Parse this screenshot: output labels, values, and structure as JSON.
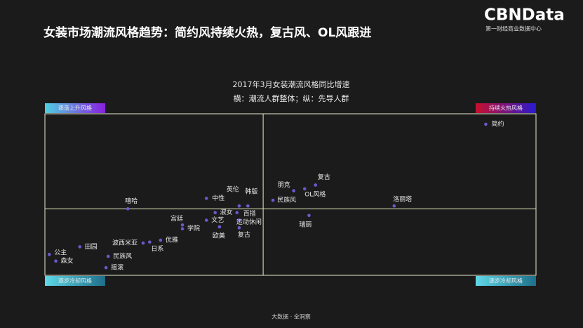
{
  "header": {
    "title": "女装市场潮流风格趋势：简约风持续火热，复古风、OL风跟进"
  },
  "logo": {
    "name": "CBNData",
    "tagline": "第一财经商业数据中心"
  },
  "footer": "大数据 · 全洞察",
  "chart_data": {
    "type": "scatter",
    "title": "2017年3月女装潮流风格同比增速",
    "subtitle": "横：潮流人群整体；纵：先导人群",
    "color": "#6a5acd",
    "quadrant_labels": {
      "top_left": "逐渐上升风格",
      "top_right": "持续火热风格",
      "bottom_left": "逐步冷却风格",
      "bottom_right": "逐步冷却风格"
    },
    "xlim": [
      -100,
      125
    ],
    "ylim": [
      -70,
      100
    ],
    "labels": [
      "简约",
      "复古",
      "朋克",
      "OL风格",
      "民族风",
      "洛丽塔",
      "瑞丽",
      "嘻哈",
      "中性",
      "英伦",
      "韩版",
      "淑女",
      "百搭",
      "文艺",
      "运动休闲",
      "宫廷",
      "学院",
      "欧美",
      "复古",
      "优雅",
      "波西米亚",
      "日系",
      "田园",
      "民族风",
      "公主",
      "森女",
      "摇滚"
    ],
    "x": [
      102,
      24,
      14,
      19,
      4.5,
      60,
      21,
      -62,
      -26,
      -11,
      -7,
      -22,
      -12,
      -26,
      -11,
      -37,
      -37,
      -20,
      -11,
      -47,
      -55,
      -52,
      -84,
      -71,
      -98,
      -95,
      -72
    ],
    "y": [
      89,
      25,
      19,
      21,
      9,
      3,
      -7,
      0,
      11,
      3,
      3,
      -4,
      -4,
      -12,
      -12,
      -17,
      -21,
      -19,
      -20,
      -33,
      -36,
      -35,
      -40,
      -50,
      -48,
      -55,
      -62
    ]
  }
}
